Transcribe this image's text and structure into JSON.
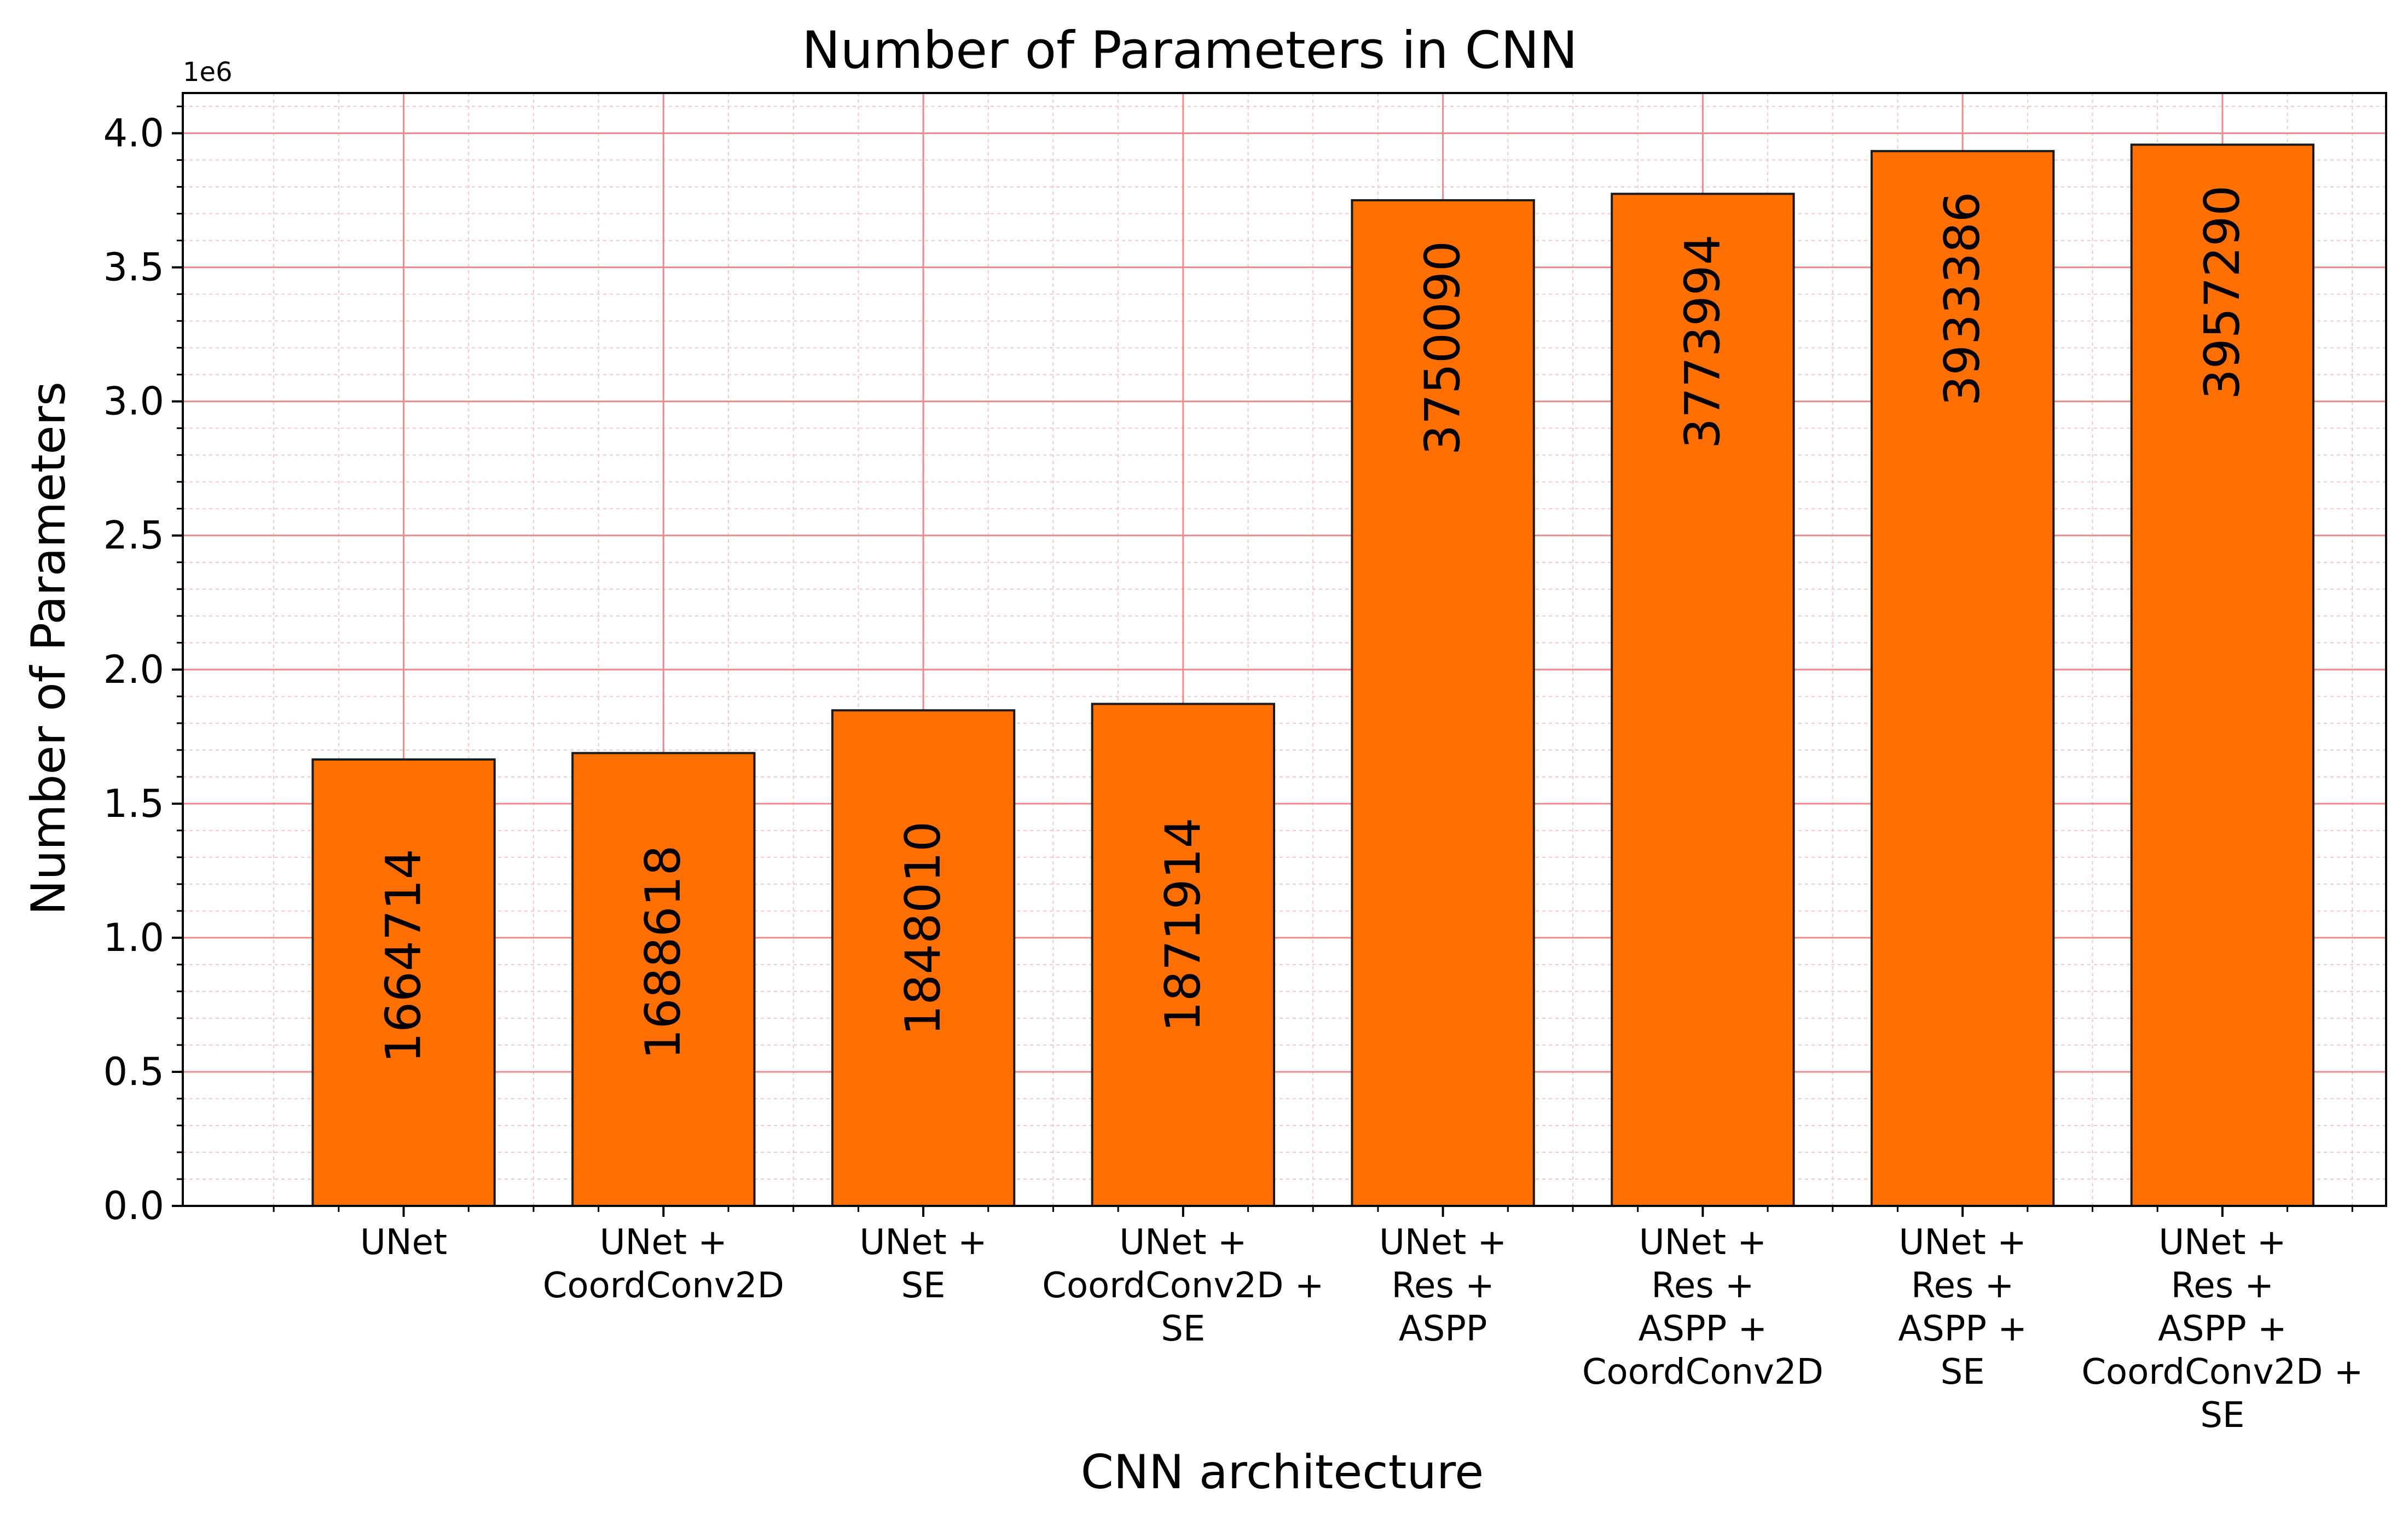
{
  "chart_data": {
    "type": "bar",
    "title": "Number of Parameters in CNN",
    "xlabel": "CNN architecture",
    "ylabel": "Number of Parameters",
    "y_offset_label": "1e6",
    "ylim": [
      0,
      4150000
    ],
    "yticks": [
      0,
      500000,
      1000000,
      1500000,
      2000000,
      2500000,
      3000000,
      3500000,
      4000000
    ],
    "ytick_labels": [
      "0.0",
      "0.5",
      "1.0",
      "1.5",
      "2.0",
      "2.5",
      "3.0",
      "3.5",
      "4.0"
    ],
    "categories": [
      [
        "UNet"
      ],
      [
        "UNet +",
        "CoordConv2D"
      ],
      [
        "UNet +",
        "SE"
      ],
      [
        "UNet +",
        "CoordConv2D +",
        "SE"
      ],
      [
        "UNet +",
        "Res +",
        "ASPP"
      ],
      [
        "UNet +",
        "Res +",
        "ASPP +",
        "CoordConv2D"
      ],
      [
        "UNet +",
        "Res +",
        "ASPP +",
        "SE"
      ],
      [
        "UNet +",
        "Res +",
        "ASPP +",
        "CoordConv2D +",
        "SE"
      ]
    ],
    "values": [
      1664714,
      1688618,
      1848010,
      1871914,
      3750090,
      3773994,
      3933386,
      3957290
    ],
    "data_labels": [
      "1664714",
      "1688618",
      "1848010",
      "1871914",
      "3750090",
      "3773994",
      "3933386",
      "3957290"
    ],
    "bar_color": "#ff7000",
    "bar_edge_color": "#1a1a1a",
    "grid": true,
    "major_grid_color": "#f08a8a",
    "minor_grid_color": "#f7c6c6"
  }
}
